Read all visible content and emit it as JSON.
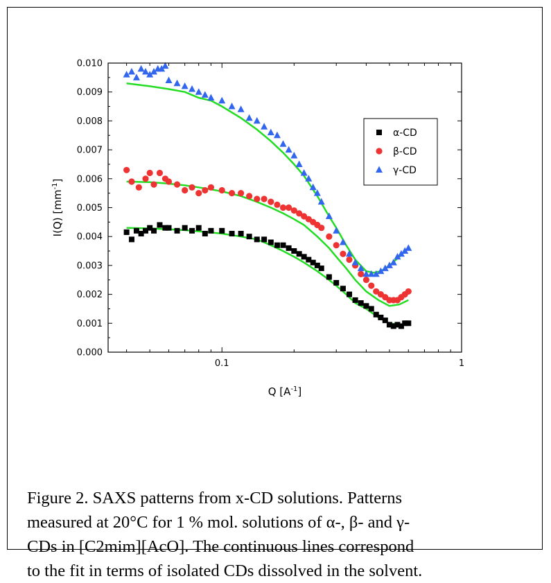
{
  "caption": {
    "line1": "Figure 2. SAXS patterns from x-CD solutions. Patterns",
    "line2": "measured at 20°C for 1 % mol. solutions of α-, β- and γ-",
    "line3": "CDs in [C2mim][AcO]. The continuous lines correspond",
    "line4": "to the fit in terms of isolated CDs dissolved in the solvent."
  },
  "chart_data": {
    "type": "scatter",
    "title": "",
    "xlabel": "Q [A^-1]",
    "ylabel": "I(Q) [mm^-1]",
    "xscale": "log",
    "xlim": [
      0.0335,
      1
    ],
    "ylim": [
      0,
      0.01
    ],
    "x_ticks": [
      {
        "value": 0.1,
        "label": "0.1"
      },
      {
        "value": 1,
        "label": "1"
      }
    ],
    "y_ticks": [
      {
        "value": 0.0,
        "label": "0.000"
      },
      {
        "value": 0.001,
        "label": "0.001"
      },
      {
        "value": 0.002,
        "label": "0.002"
      },
      {
        "value": 0.003,
        "label": "0.003"
      },
      {
        "value": 0.004,
        "label": "0.004"
      },
      {
        "value": 0.005,
        "label": "0.005"
      },
      {
        "value": 0.006,
        "label": "0.006"
      },
      {
        "value": 0.007,
        "label": "0.007"
      },
      {
        "value": 0.008,
        "label": "0.008"
      },
      {
        "value": 0.009,
        "label": "0.009"
      },
      {
        "value": 0.01,
        "label": "0.010"
      }
    ],
    "legend_position": "right",
    "fit_color": "#22dd22",
    "series": [
      {
        "name": "α-CD",
        "marker": "square",
        "color": "#000000",
        "x": [
          0.04,
          0.042,
          0.044,
          0.046,
          0.048,
          0.05,
          0.052,
          0.055,
          0.058,
          0.06,
          0.065,
          0.07,
          0.075,
          0.08,
          0.085,
          0.09,
          0.1,
          0.11,
          0.12,
          0.13,
          0.14,
          0.15,
          0.16,
          0.17,
          0.18,
          0.19,
          0.2,
          0.21,
          0.22,
          0.23,
          0.24,
          0.25,
          0.26,
          0.28,
          0.3,
          0.32,
          0.34,
          0.36,
          0.38,
          0.4,
          0.42,
          0.44,
          0.46,
          0.48,
          0.5,
          0.52,
          0.54,
          0.56,
          0.58,
          0.6
        ],
        "y": [
          0.00415,
          0.0039,
          0.0042,
          0.0041,
          0.0042,
          0.0043,
          0.0042,
          0.0044,
          0.0043,
          0.0043,
          0.0042,
          0.0043,
          0.0042,
          0.0043,
          0.0041,
          0.0042,
          0.0042,
          0.0041,
          0.0041,
          0.004,
          0.0039,
          0.0039,
          0.0038,
          0.0037,
          0.0037,
          0.0036,
          0.0035,
          0.0034,
          0.0033,
          0.0032,
          0.0031,
          0.003,
          0.0029,
          0.0026,
          0.0024,
          0.0022,
          0.002,
          0.0018,
          0.0017,
          0.0016,
          0.0015,
          0.0013,
          0.0012,
          0.0011,
          0.00095,
          0.0009,
          0.00095,
          0.0009,
          0.001,
          0.001
        ]
      },
      {
        "name": "β-CD",
        "marker": "circle",
        "color": "#ee3333",
        "x": [
          0.04,
          0.042,
          0.045,
          0.048,
          0.05,
          0.052,
          0.055,
          0.058,
          0.06,
          0.065,
          0.07,
          0.075,
          0.08,
          0.085,
          0.09,
          0.1,
          0.11,
          0.12,
          0.13,
          0.14,
          0.15,
          0.16,
          0.17,
          0.18,
          0.19,
          0.2,
          0.21,
          0.22,
          0.23,
          0.24,
          0.25,
          0.26,
          0.28,
          0.3,
          0.32,
          0.34,
          0.36,
          0.38,
          0.4,
          0.42,
          0.44,
          0.46,
          0.48,
          0.5,
          0.52,
          0.54,
          0.56,
          0.58,
          0.6
        ],
        "y": [
          0.0063,
          0.0059,
          0.0057,
          0.006,
          0.0062,
          0.0058,
          0.0062,
          0.006,
          0.0059,
          0.0058,
          0.0056,
          0.0057,
          0.0055,
          0.0056,
          0.0057,
          0.0056,
          0.0055,
          0.0055,
          0.0054,
          0.0053,
          0.0053,
          0.0052,
          0.0051,
          0.005,
          0.005,
          0.0049,
          0.0048,
          0.0047,
          0.0046,
          0.0045,
          0.0044,
          0.0043,
          0.004,
          0.0037,
          0.0034,
          0.0032,
          0.003,
          0.0027,
          0.0025,
          0.0023,
          0.0021,
          0.002,
          0.0019,
          0.0018,
          0.0018,
          0.0018,
          0.0019,
          0.002,
          0.0021
        ]
      },
      {
        "name": "γ-CD",
        "marker": "triangle",
        "color": "#3366ee",
        "x": [
          0.04,
          0.042,
          0.044,
          0.046,
          0.048,
          0.05,
          0.052,
          0.054,
          0.056,
          0.058,
          0.06,
          0.065,
          0.07,
          0.075,
          0.08,
          0.085,
          0.09,
          0.1,
          0.11,
          0.12,
          0.13,
          0.14,
          0.15,
          0.16,
          0.17,
          0.18,
          0.19,
          0.2,
          0.21,
          0.22,
          0.23,
          0.24,
          0.25,
          0.26,
          0.28,
          0.3,
          0.32,
          0.34,
          0.36,
          0.38,
          0.4,
          0.42,
          0.44,
          0.46,
          0.48,
          0.5,
          0.52,
          0.54,
          0.56,
          0.58,
          0.6
        ],
        "y": [
          0.0096,
          0.0097,
          0.0095,
          0.0098,
          0.0097,
          0.0096,
          0.0097,
          0.0098,
          0.0098,
          0.0099,
          0.0094,
          0.0093,
          0.0092,
          0.0091,
          0.009,
          0.0089,
          0.0088,
          0.0087,
          0.0085,
          0.0084,
          0.0081,
          0.008,
          0.0078,
          0.0076,
          0.0075,
          0.0072,
          0.007,
          0.0068,
          0.0065,
          0.0062,
          0.006,
          0.0057,
          0.0055,
          0.0052,
          0.0047,
          0.0042,
          0.0038,
          0.0034,
          0.0031,
          0.0029,
          0.0027,
          0.0027,
          0.0027,
          0.0028,
          0.0029,
          0.003,
          0.0031,
          0.0033,
          0.0034,
          0.0035,
          0.0036
        ]
      }
    ],
    "fits": [
      {
        "series": "α-CD",
        "x": [
          0.04,
          0.05,
          0.06,
          0.07,
          0.08,
          0.09,
          0.1,
          0.12,
          0.14,
          0.16,
          0.18,
          0.2,
          0.22,
          0.25,
          0.28,
          0.3,
          0.33,
          0.36,
          0.4,
          0.45,
          0.5,
          0.55,
          0.6
        ],
        "y": [
          0.0043,
          0.00428,
          0.00425,
          0.00422,
          0.00418,
          0.00414,
          0.0041,
          0.004,
          0.0039,
          0.0037,
          0.0035,
          0.0033,
          0.0031,
          0.0028,
          0.0025,
          0.0023,
          0.002,
          0.0017,
          0.0015,
          0.0012,
          0.001,
          0.00095,
          0.00095
        ]
      },
      {
        "series": "β-CD",
        "x": [
          0.04,
          0.05,
          0.06,
          0.07,
          0.08,
          0.09,
          0.1,
          0.12,
          0.14,
          0.16,
          0.18,
          0.2,
          0.22,
          0.25,
          0.28,
          0.3,
          0.33,
          0.36,
          0.4,
          0.45,
          0.5,
          0.55,
          0.6
        ],
        "y": [
          0.0059,
          0.00588,
          0.00583,
          0.00577,
          0.0057,
          0.00563,
          0.00556,
          0.0054,
          0.0052,
          0.005,
          0.0048,
          0.0046,
          0.0044,
          0.004,
          0.0036,
          0.0033,
          0.0029,
          0.0025,
          0.0021,
          0.0018,
          0.0016,
          0.00165,
          0.0018
        ]
      },
      {
        "series": "γ-CD",
        "x": [
          0.04,
          0.05,
          0.06,
          0.07,
          0.08,
          0.09,
          0.1,
          0.12,
          0.14,
          0.16,
          0.18,
          0.2,
          0.22,
          0.25,
          0.28,
          0.3,
          0.33,
          0.36,
          0.4,
          0.43,
          0.46,
          0.5,
          0.55,
          0.6
        ],
        "y": [
          0.0093,
          0.0092,
          0.0091,
          0.009,
          0.0088,
          0.0087,
          0.0085,
          0.0081,
          0.0077,
          0.0073,
          0.0069,
          0.0065,
          0.0061,
          0.0054,
          0.0047,
          0.0043,
          0.0037,
          0.0032,
          0.0028,
          0.00275,
          0.0028,
          0.003,
          0.0033,
          0.0036
        ]
      }
    ]
  }
}
